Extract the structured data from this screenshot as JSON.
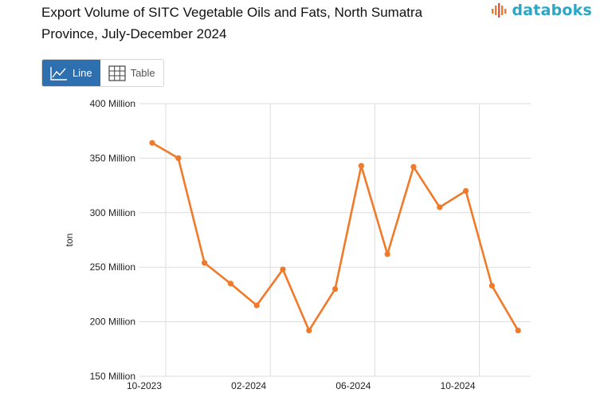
{
  "header": {
    "title": "Export Volume of SITC Vegetable Oils and Fats, North Sumatra Province, July-December 2024",
    "brand": "databoks"
  },
  "view_toggle": {
    "line_label": "Line",
    "table_label": "Table",
    "selected": "Line"
  },
  "colors": {
    "series": "#f07a2a",
    "grid": "#dddddd",
    "toggle_active": "#2e6fb0",
    "brand": "#2aa6c6"
  },
  "chart_data": {
    "type": "line",
    "title": "Export Volume of SITC Vegetable Oils and Fats, North Sumatra Province, July-December 2024",
    "xlabel": "",
    "ylabel": "ton",
    "x": [
      "10-2023",
      "11-2023",
      "12-2023",
      "01-2024",
      "02-2024",
      "03-2024",
      "04-2024",
      "05-2024",
      "06-2024",
      "07-2024",
      "08-2024",
      "09-2024",
      "10-2024",
      "11-2024",
      "12-2024"
    ],
    "x_tick_labels": [
      "10-2023",
      "02-2024",
      "06-2024",
      "10-2024"
    ],
    "y_tick_values": [
      150000000,
      200000000,
      250000000,
      300000000,
      350000000,
      400000000
    ],
    "y_tick_labels": [
      "150 Million",
      "200 Million",
      "250 Million",
      "300 Million",
      "350 Million",
      "400 Million"
    ],
    "ylim": [
      150000000,
      400000000
    ],
    "grid": true,
    "series": [
      {
        "name": "ton",
        "values": [
          364000000,
          350000000,
          254000000,
          235000000,
          215000000,
          248000000,
          192000000,
          230000000,
          343000000,
          262000000,
          342000000,
          305000000,
          320000000,
          233000000,
          192000000
        ]
      }
    ]
  }
}
